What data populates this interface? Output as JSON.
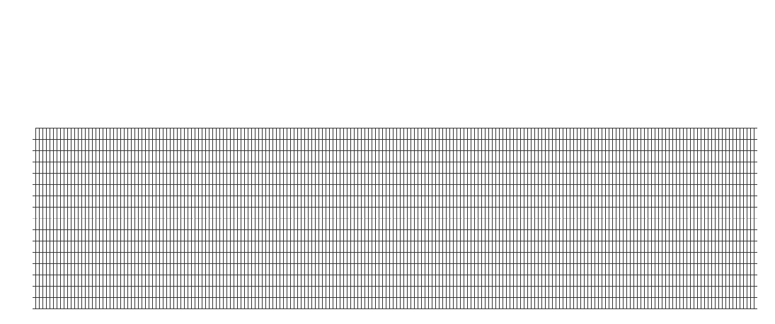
{
  "colors": {
    "background": "#ffffff",
    "grid_line": "#333333",
    "center_line": "#c0c0c0"
  }
}
